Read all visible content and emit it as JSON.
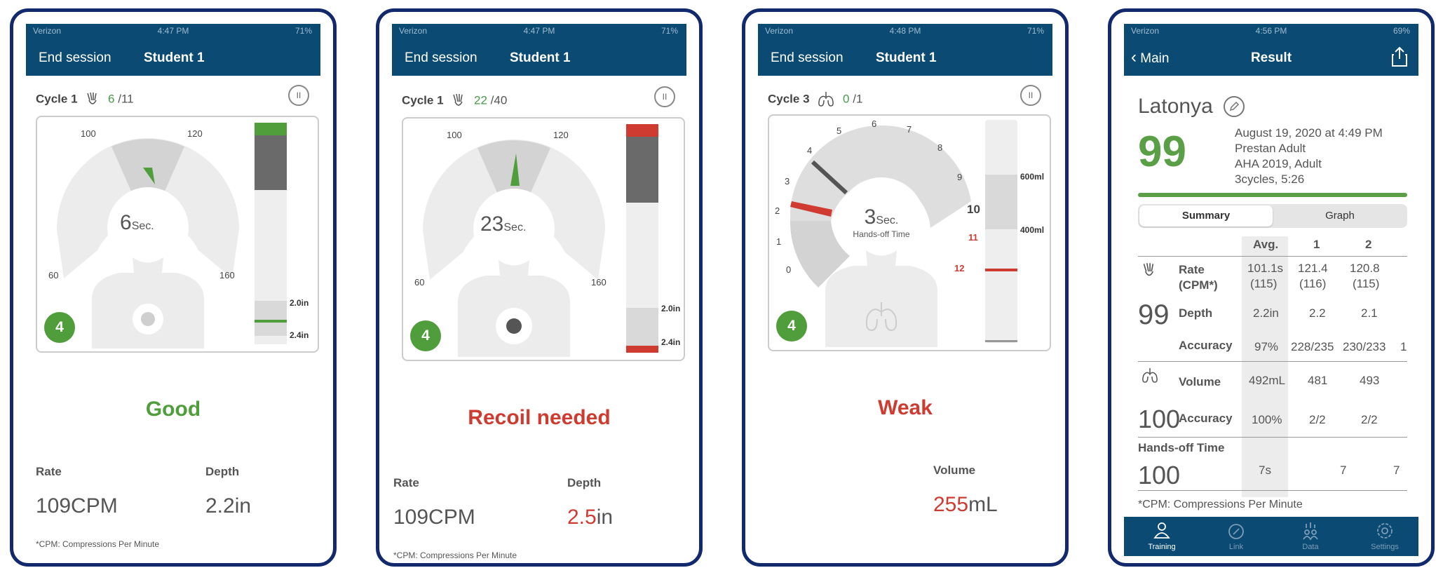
{
  "colors": {
    "nav": "#0b4a73",
    "good": "#4f9d3b",
    "bad": "#cf3b30",
    "frame": "#13296e"
  },
  "screens": [
    {
      "status": {
        "carrier": "Verizon",
        "time": "4:47 PM",
        "battery": "71%"
      },
      "nav": {
        "left": "End session",
        "title": "Student 1"
      },
      "cycle": {
        "label": "Cycle 1",
        "count": "6",
        "total": "/11"
      },
      "gauge": {
        "value": "6",
        "unit": "Sec.",
        "ticks": [
          "100",
          "120",
          "60",
          "160"
        ]
      },
      "depth_bar": {
        "labels": [
          "2.0in",
          "2.4in"
        ]
      },
      "badge": "4",
      "feedback": "Good",
      "metrics": {
        "rate_label": "Rate",
        "rate_value": "109CPM",
        "depth_label": "Depth",
        "depth_value": "2.2in"
      },
      "footnote": "*CPM: Compressions Per Minute"
    },
    {
      "status": {
        "carrier": "Verizon",
        "time": "4:47 PM",
        "battery": "71%"
      },
      "nav": {
        "left": "End session",
        "title": "Student 1"
      },
      "cycle": {
        "label": "Cycle 1",
        "count": "22",
        "total": "/40"
      },
      "gauge": {
        "value": "23",
        "unit": "Sec.",
        "ticks": [
          "100",
          "120",
          "60",
          "160"
        ]
      },
      "depth_bar": {
        "labels": [
          "2.0in",
          "2.4in"
        ]
      },
      "badge": "4",
      "feedback": "Recoil needed",
      "metrics": {
        "rate_label": "Rate",
        "rate_value": "109CPM",
        "depth_label": "Depth",
        "depth_value_num": "2.5",
        "depth_value_unit": "in"
      },
      "footnote": "*CPM: Compressions Per Minute"
    },
    {
      "status": {
        "carrier": "Verizon",
        "time": "4:48 PM",
        "battery": "71%"
      },
      "nav": {
        "left": "End session",
        "title": "Student 1"
      },
      "cycle": {
        "label": "Cycle 3",
        "count": "0",
        "total": "/1"
      },
      "gauge": {
        "value": "3",
        "unit": "Sec.",
        "sub": "Hands-off Time",
        "ticks": [
          "0",
          "1",
          "2",
          "3",
          "4",
          "5",
          "6",
          "7",
          "8",
          "9",
          "10",
          "11",
          "12"
        ]
      },
      "volume_bar": {
        "labels": [
          "600ml",
          "400ml"
        ]
      },
      "badge": "4",
      "feedback": "Weak",
      "metrics": {
        "volume_label": "Volume",
        "volume_num": "255",
        "volume_unit": "mL"
      }
    },
    {
      "status": {
        "carrier": "Verizon",
        "time": "4:56 PM",
        "battery": "69%"
      },
      "nav": {
        "back": "Main",
        "title": "Result"
      },
      "name": "Latonya",
      "score": "99",
      "meta": [
        "August 19, 2020 at 4:49 PM",
        "Prestan Adult",
        "AHA 2019, Adult",
        "3cycles, 5:26"
      ],
      "tabs": [
        "Summary",
        "Graph"
      ],
      "table": {
        "headers": [
          "Avg.",
          "1",
          "2"
        ],
        "compression_score": "99",
        "rate": {
          "label1": "Rate",
          "label2": "(CPM*)",
          "avg1": "101.1s",
          "avg2": "(115)",
          "c1a": "121.4",
          "c1b": "(116)",
          "c2a": "120.8",
          "c2b": "(115)"
        },
        "depth": {
          "label": "Depth",
          "avg": "2.2in",
          "c1": "2.2",
          "c2": "2.1"
        },
        "accuracy": {
          "label": "Accuracy",
          "avg": "97%",
          "c1": "228/235",
          "c2": "230/233",
          "c3": "1"
        },
        "ventilation_score": "100",
        "volume": {
          "label": "Volume",
          "avg": "492mL",
          "c1": "481",
          "c2": "493"
        },
        "vaccuracy": {
          "label": "Accuracy",
          "avg": "100%",
          "c1": "2/2",
          "c2": "2/2"
        },
        "handsoff": {
          "label": "Hands-off Time",
          "score": "100",
          "avg": "7s",
          "c1": "7",
          "c2": "7"
        }
      },
      "footnote": "*CPM: Compressions Per Minute",
      "tabbar": [
        "Training",
        "Link",
        "Data",
        "Settings"
      ]
    }
  ]
}
